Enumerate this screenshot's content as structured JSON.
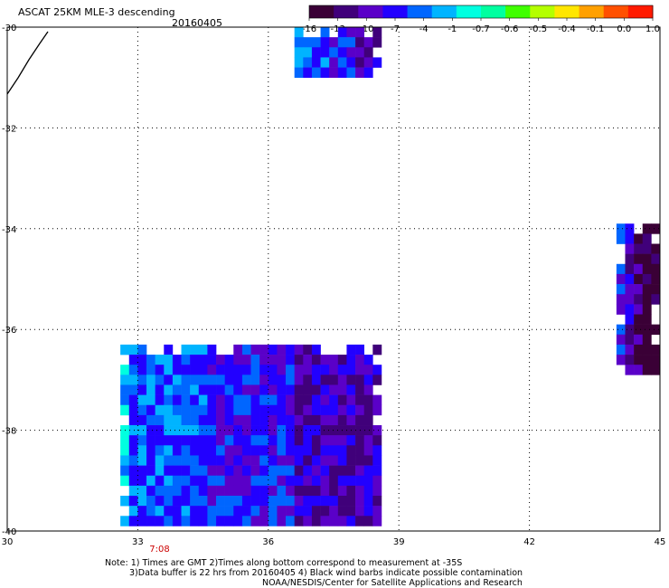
{
  "header": {
    "title": "ASCAT 25KM MLE-3 descending",
    "date": "20160405"
  },
  "colorbar": {
    "labels": [
      "-16",
      "-13",
      "-10",
      "-7",
      "-4",
      "-1",
      "-0.7",
      "-0.6",
      "-0.5",
      "-0.4",
      "-0.1",
      "0.0",
      "1.0"
    ],
    "colors": [
      "#3a0036",
      "#40007a",
      "#5a00c8",
      "#2200ff",
      "#0066ff",
      "#00b4ff",
      "#00ffe0",
      "#00ffa0",
      "#40ff00",
      "#b4ff00",
      "#ffe600",
      "#ffa000",
      "#ff5000",
      "#ff1a00"
    ]
  },
  "chart_data": {
    "type": "heatmap",
    "title": "ASCAT 25KM MLE-3 descending",
    "subtitle": "20160405",
    "xlim": [
      30,
      45
    ],
    "ylim": [
      -40,
      -30
    ],
    "x_ticks": [
      "30",
      "33",
      "36",
      "39",
      "42",
      "45"
    ],
    "y_ticks": [
      "-30",
      "-32",
      "-34",
      "-36",
      "-38",
      "-40"
    ],
    "grid": true,
    "time_labels": [
      {
        "x": 33.5,
        "text": "7:08"
      }
    ],
    "swaths": [
      {
        "x": [
          36.6,
          38.5
        ],
        "y": [
          -31.0,
          -30.0
        ],
        "level": "-7"
      },
      {
        "x": [
          32.6,
          38.6
        ],
        "y": [
          -40.0,
          -36.3
        ],
        "level": "-7"
      },
      {
        "x": [
          44.0,
          45.0
        ],
        "y": [
          -36.9,
          -33.9
        ],
        "level": "-13"
      }
    ]
  },
  "notes": {
    "line1": "Note: 1) Times are GMT 2)Times along bottom correspond to measurement at -35S",
    "line2": "3)Data buffer is 22 hrs from 20160405 4) Black wind barbs indicate possible contamination",
    "line3": "NOAA/NESDIS/Center for Satellite Applications and Research"
  }
}
